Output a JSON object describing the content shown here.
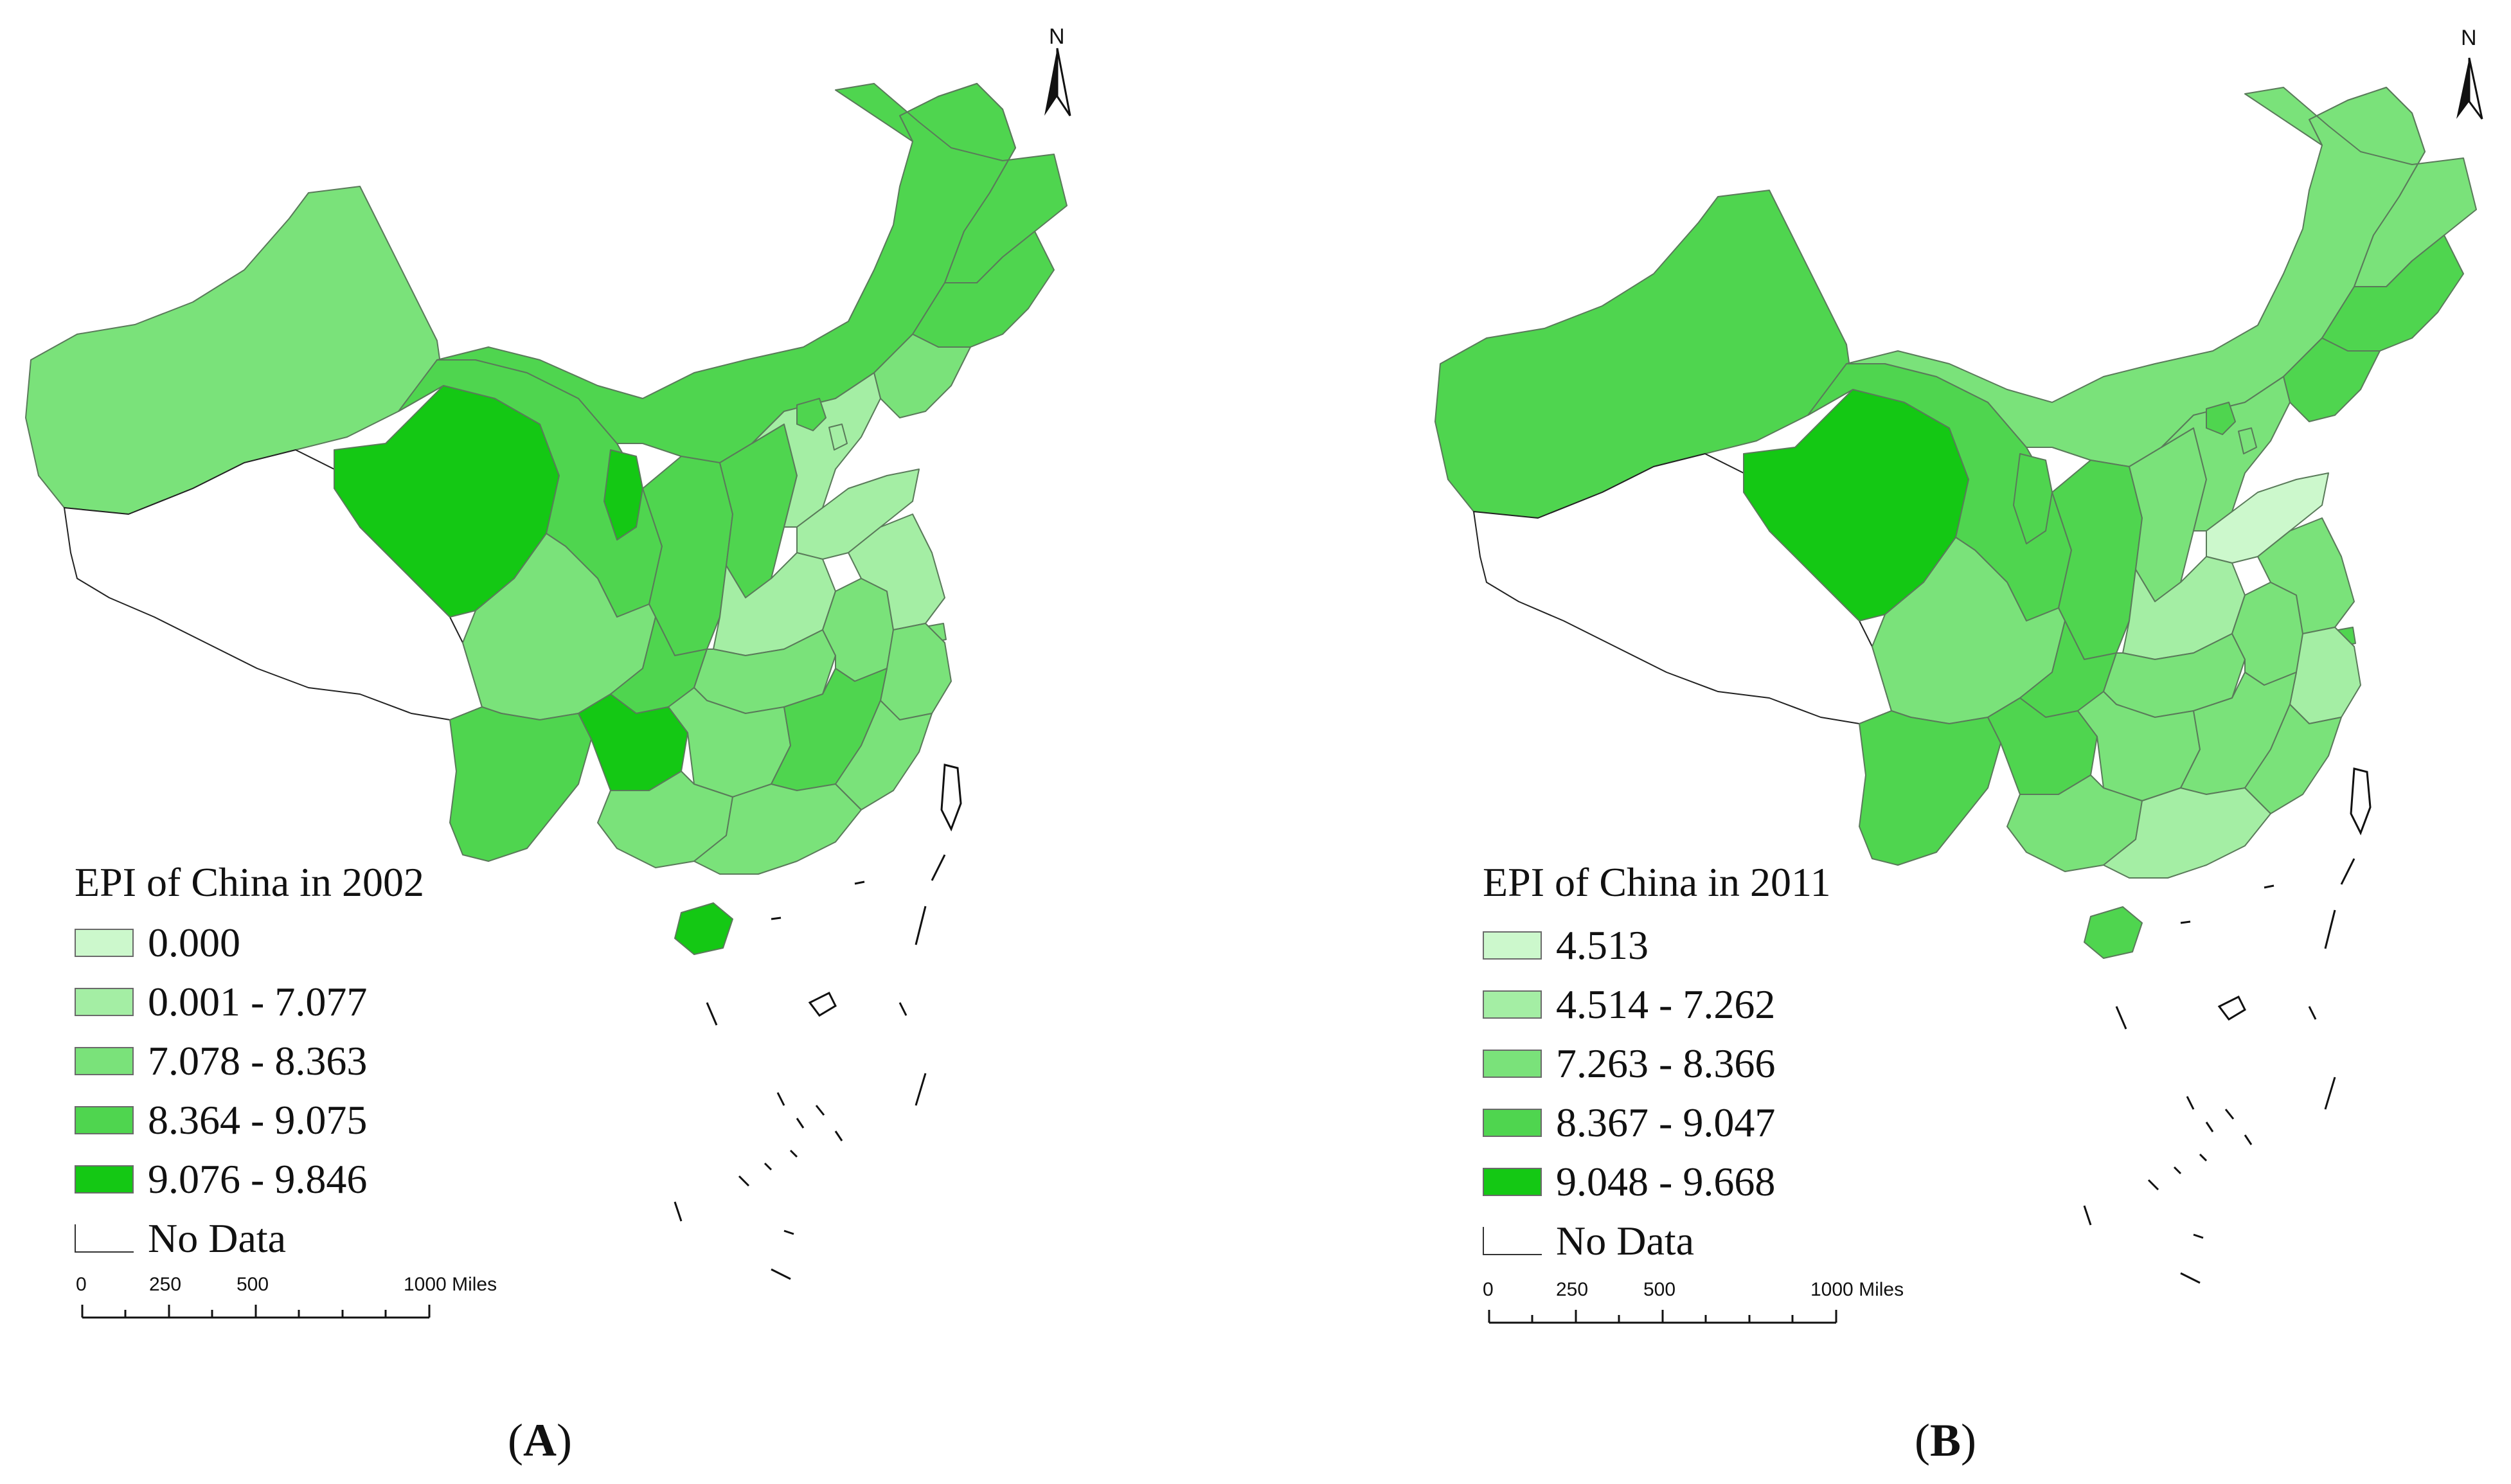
{
  "colors": {
    "class_0": "#ccf8cc",
    "class_1": "#a4eea4",
    "class_2": "#7ae27a",
    "class_3": "#4fd54f",
    "class_4": "#14c814",
    "no_data": "#ffffff",
    "boundary": "#5a7a5a"
  },
  "north_letter": "N",
  "panels": [
    {
      "panel_label": "A",
      "legend": {
        "title": "EPI of China in 2002",
        "classes": [
          {
            "label": "0.000",
            "color_key": "class_0"
          },
          {
            "label": "0.001 - 7.077",
            "color_key": "class_1"
          },
          {
            "label": "7.078 - 8.363",
            "color_key": "class_2"
          },
          {
            "label": "8.364 - 9.075",
            "color_key": "class_3"
          },
          {
            "label": "9.076 - 9.846",
            "color_key": "class_4"
          },
          {
            "label": "No Data",
            "color_key": "no_data"
          }
        ]
      },
      "scale": {
        "ticks": [
          "0",
          "250",
          "500",
          "1000 Miles"
        ]
      },
      "regions": {
        "xinjiang": 2,
        "tibet": -1,
        "qinghai": 4,
        "gansu": 3,
        "inner_mongolia": 3,
        "heilongjiang": 3,
        "jilin": 3,
        "liaoning": 2,
        "ningxia": 4,
        "shaanxi": 3,
        "shanxi": 3,
        "hebei": 1,
        "beijing": 3,
        "tianjin": 1,
        "shandong": 1,
        "henan": 1,
        "sichuan": 2,
        "chongqing": 3,
        "hubei": 2,
        "anhui": 2,
        "jiangsu": 1,
        "shanghai": 2,
        "zhejiang": 2,
        "yunnan": 3,
        "guizhou": 4,
        "hunan": 2,
        "jiangxi": 3,
        "fujian": 2,
        "guangxi": 2,
        "guangdong": 2,
        "hainan": 4
      }
    },
    {
      "panel_label": "B",
      "legend": {
        "title": "EPI of China in 2011",
        "classes": [
          {
            "label": "4.513",
            "color_key": "class_0"
          },
          {
            "label": "4.514 - 7.262",
            "color_key": "class_1"
          },
          {
            "label": "7.263 - 8.366",
            "color_key": "class_2"
          },
          {
            "label": "8.367 - 9.047",
            "color_key": "class_3"
          },
          {
            "label": "9.048 - 9.668",
            "color_key": "class_4"
          },
          {
            "label": "No Data",
            "color_key": "no_data"
          }
        ]
      },
      "scale": {
        "ticks": [
          "0",
          "250",
          "500",
          "1000 Miles"
        ]
      },
      "regions": {
        "xinjiang": 3,
        "tibet": -1,
        "qinghai": 4,
        "gansu": 3,
        "inner_mongolia": 2,
        "heilongjiang": 2,
        "jilin": 3,
        "liaoning": 3,
        "ningxia": 3,
        "shaanxi": 3,
        "shanxi": 2,
        "hebei": 2,
        "beijing": 3,
        "tianjin": 2,
        "shandong": 0,
        "henan": 1,
        "sichuan": 2,
        "chongqing": 3,
        "hubei": 2,
        "anhui": 2,
        "jiangsu": 2,
        "shanghai": 3,
        "zhejiang": 1,
        "yunnan": 3,
        "guizhou": 3,
        "hunan": 2,
        "jiangxi": 2,
        "fujian": 2,
        "guangxi": 2,
        "guangdong": 1,
        "hainan": 3
      }
    }
  ]
}
